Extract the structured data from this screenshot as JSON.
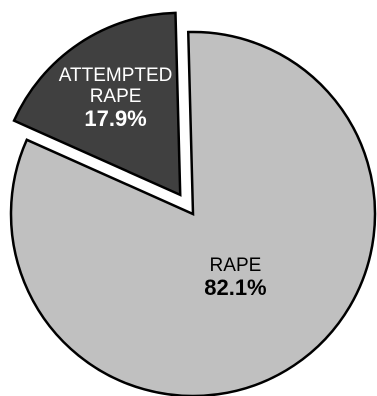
{
  "chart_data": {
    "type": "pie",
    "title": "",
    "slices": [
      {
        "label_lines": [
          "RAPE"
        ],
        "value": 82.1,
        "value_label": "82.1%",
        "color": "#c0c0c0",
        "text_color": "#000000",
        "exploded": false
      },
      {
        "label_lines": [
          "ATTEMPTED",
          "RAPE"
        ],
        "value": 17.9,
        "value_label": "17.9%",
        "color": "#404040",
        "text_color": "#ffffff",
        "exploded": true
      }
    ],
    "legend": "none"
  }
}
